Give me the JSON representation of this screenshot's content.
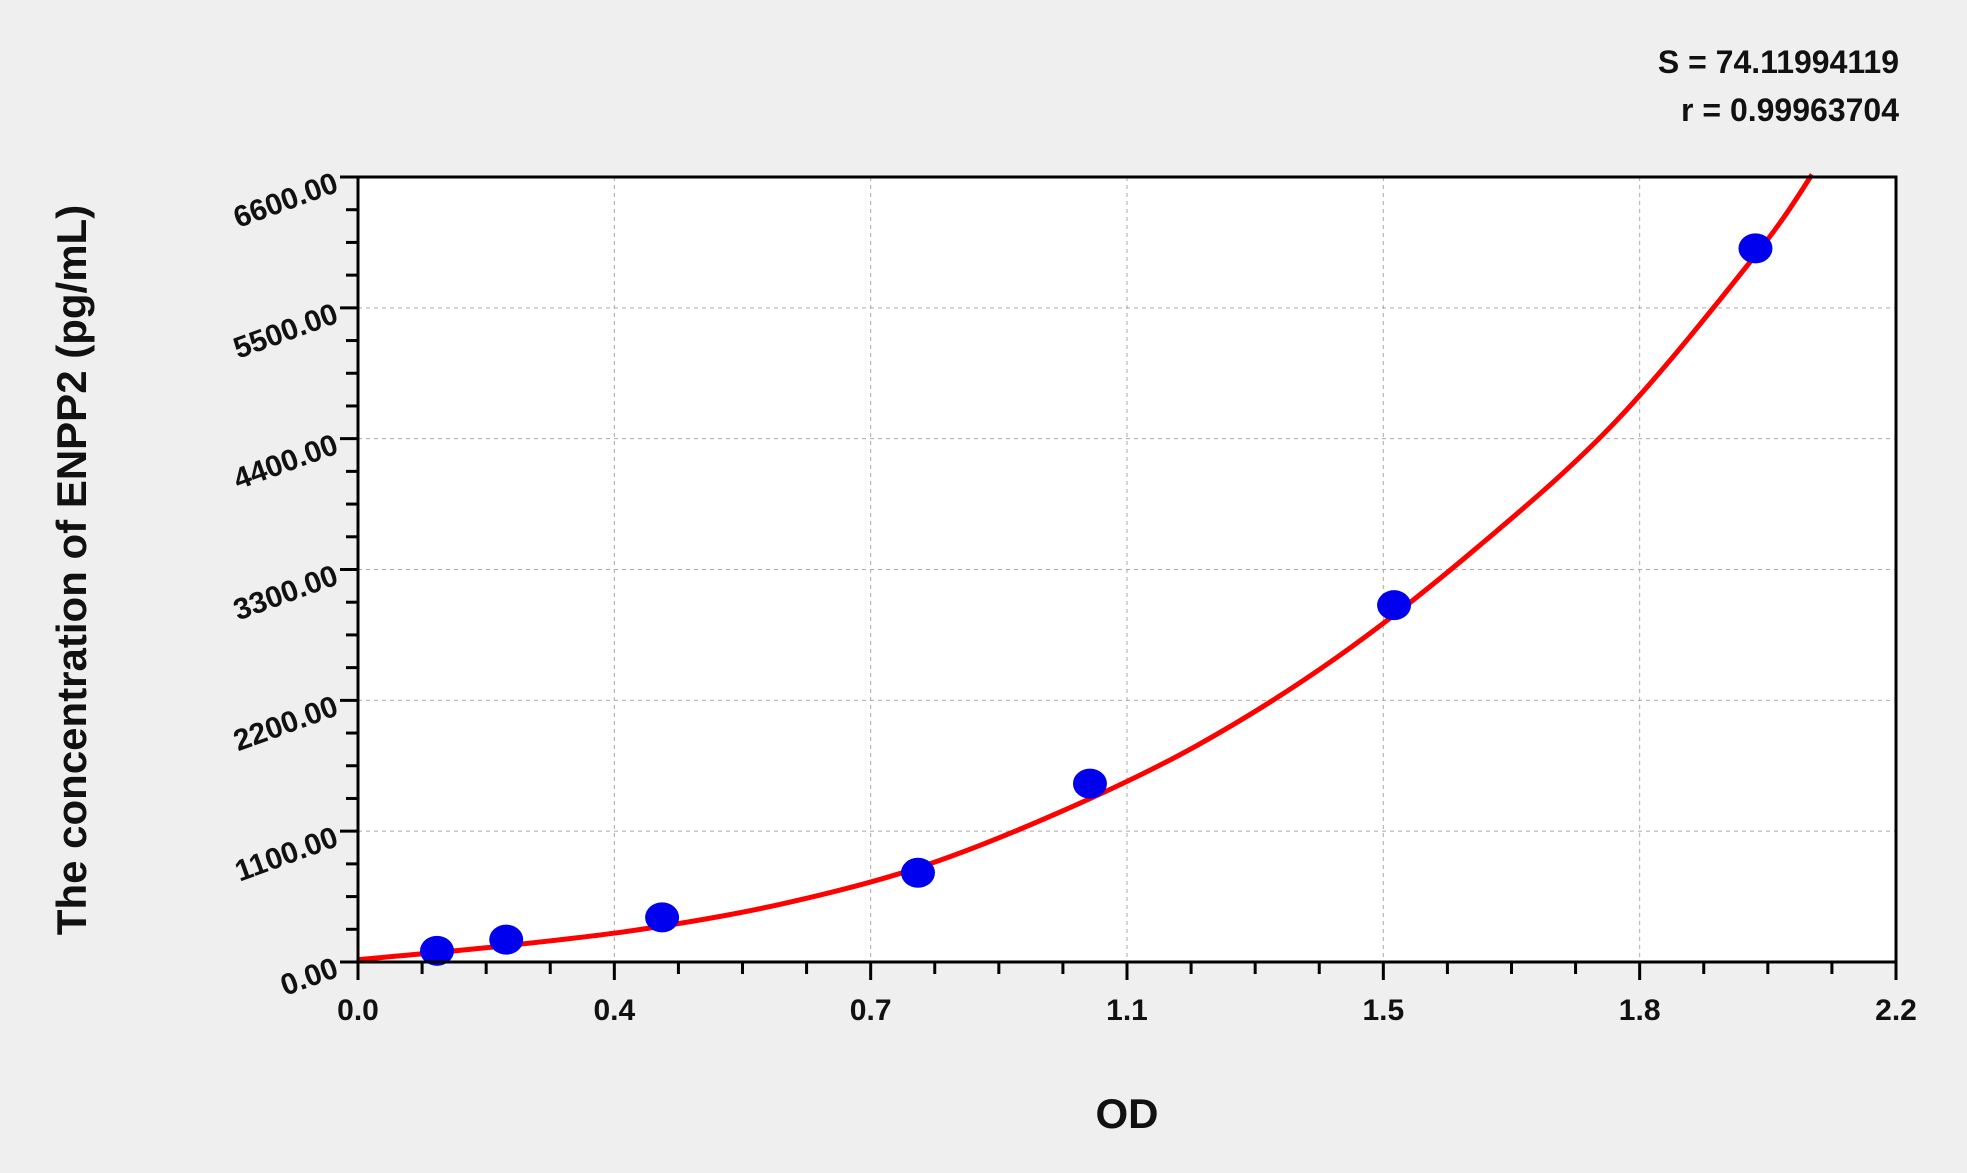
{
  "chart_data": {
    "type": "scatter",
    "title": "",
    "xlabel": "OD",
    "ylabel": "The concentration of ENPP2 (pg/mL)",
    "xlim": [
      0.0,
      2.2
    ],
    "ylim": [
      0,
      6600
    ],
    "x_tick_labels": [
      "0.0",
      "0.4",
      "0.7",
      "1.1",
      "1.5",
      "1.8",
      "2.2"
    ],
    "y_tick_labels": [
      "0.00",
      "1100.00",
      "2200.00",
      "3300.00",
      "4400.00",
      "5500.00",
      "6600.00"
    ],
    "grid": true,
    "annotations": {
      "S": "S = 74.11994119",
      "r": "r = 0.99963704"
    },
    "points": {
      "x": [
        0.113,
        0.212,
        0.435,
        0.801,
        1.047,
        1.482,
        1.999
      ],
      "y": [
        94,
        188,
        375,
        750,
        1500,
        3000,
        6000
      ]
    },
    "fit_curve": {
      "x": [
        0.0,
        0.2,
        0.4,
        0.6,
        0.8,
        1.0,
        1.2,
        1.4,
        1.6,
        1.8,
        2.0,
        2.08
      ],
      "y": [
        20,
        130,
        270,
        480,
        790,
        1250,
        1820,
        2560,
        3480,
        4550,
        5950,
        6620
      ]
    },
    "colors": {
      "points": "#0000ee",
      "curve": "#ff0000",
      "background": "#efefef",
      "plot": "#ffffff"
    }
  }
}
